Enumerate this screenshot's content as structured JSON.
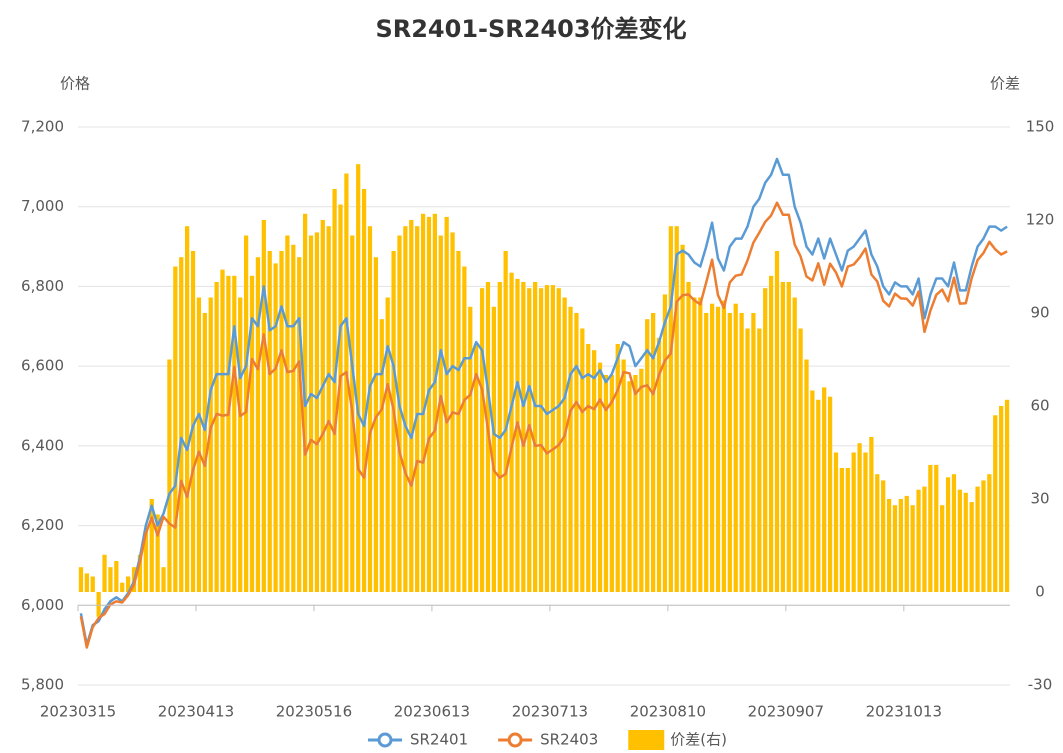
{
  "chart_data": {
    "type": "combo",
    "title": "SR2401-SR2403价差变化",
    "y_label": "价格",
    "y2_label": "价差",
    "grid": true,
    "ylim": [
      5800,
      7200
    ],
    "yticks": [
      {
        "value": 5800,
        "label": "5,800"
      },
      {
        "value": 6000,
        "label": "6,000"
      },
      {
        "value": 6200,
        "label": "6,200"
      },
      {
        "value": 6400,
        "label": "6,400"
      },
      {
        "value": 6600,
        "label": "6,600"
      },
      {
        "value": 6800,
        "label": "6,800"
      },
      {
        "value": 7000,
        "label": "7,000"
      },
      {
        "value": 7200,
        "label": "7,200"
      }
    ],
    "y2lim": [
      -30,
      150
    ],
    "y2ticks": [
      -30,
      0,
      30,
      60,
      90,
      120,
      150
    ],
    "categories": [
      "20230315",
      null,
      null,
      null,
      null,
      null,
      null,
      null,
      null,
      null,
      null,
      null,
      null,
      null,
      null,
      null,
      null,
      null,
      null,
      null,
      "20230413",
      null,
      null,
      null,
      null,
      null,
      null,
      null,
      null,
      null,
      null,
      null,
      null,
      null,
      null,
      null,
      null,
      null,
      null,
      null,
      "20230516",
      null,
      null,
      null,
      null,
      null,
      null,
      null,
      null,
      null,
      null,
      null,
      null,
      null,
      null,
      null,
      null,
      null,
      null,
      null,
      "20230613",
      null,
      null,
      null,
      null,
      null,
      null,
      null,
      null,
      null,
      null,
      null,
      null,
      null,
      null,
      null,
      null,
      null,
      null,
      null,
      "20230713",
      null,
      null,
      null,
      null,
      null,
      null,
      null,
      null,
      null,
      null,
      null,
      null,
      null,
      null,
      null,
      null,
      null,
      null,
      null,
      "20230810",
      null,
      null,
      null,
      null,
      null,
      null,
      null,
      null,
      null,
      null,
      null,
      null,
      null,
      null,
      null,
      null,
      null,
      null,
      null,
      "20230907",
      null,
      null,
      null,
      null,
      null,
      null,
      null,
      null,
      null,
      null,
      null,
      null,
      null,
      null,
      null,
      null,
      null,
      null,
      null,
      "20231013",
      null,
      null,
      null,
      null,
      null,
      null,
      null,
      null,
      null,
      null,
      null,
      null,
      null,
      null,
      null,
      null,
      null
    ],
    "series": [
      {
        "name": "SR2401",
        "type": "line",
        "color": "#5b9bd5",
        "values": [
          5980,
          5900,
          5950,
          5960,
          5990,
          6010,
          6020,
          6010,
          6030,
          6060,
          6120,
          6200,
          6250,
          6200,
          6230,
          6280,
          6300,
          6420,
          6390,
          6450,
          6480,
          6440,
          6540,
          6580,
          6580,
          6580,
          6700,
          6570,
          6600,
          6720,
          6700,
          6800,
          6690,
          6700,
          6750,
          6700,
          6700,
          6720,
          6500,
          6530,
          6520,
          6550,
          6580,
          6560,
          6700,
          6720,
          6600,
          6480,
          6450,
          6550,
          6580,
          6580,
          6650,
          6600,
          6500,
          6450,
          6420,
          6480,
          6480,
          6540,
          6560,
          6640,
          6580,
          6600,
          6590,
          6620,
          6620,
          6660,
          6640,
          6540,
          6430,
          6420,
          6440,
          6500,
          6560,
          6500,
          6550,
          6500,
          6500,
          6480,
          6490,
          6500,
          6520,
          6580,
          6600,
          6570,
          6580,
          6570,
          6590,
          6560,
          6580,
          6620,
          6660,
          6650,
          6600,
          6620,
          6640,
          6620,
          6660,
          6710,
          6750,
          6880,
          6890,
          6880,
          6860,
          6850,
          6900,
          6960,
          6870,
          6840,
          6900,
          6920,
          6920,
          6950,
          7000,
          7020,
          7060,
          7080,
          7120,
          7080,
          7080,
          7000,
          6960,
          6900,
          6880,
          6920,
          6870,
          6920,
          6880,
          6840,
          6890,
          6900,
          6920,
          6940,
          6880,
          6850,
          6800,
          6780,
          6810,
          6800,
          6800,
          6780,
          6820,
          6720,
          6780,
          6820,
          6820,
          6800,
          6860,
          6790,
          6790,
          6850,
          6900,
          6920,
          6950,
          6950,
          6940,
          6950
        ]
      },
      {
        "name": "SR2403",
        "type": "line",
        "color": "#ed7d31",
        "values": [
          5972,
          5894,
          5945,
          5968,
          5978,
          6002,
          6010,
          6007,
          6025,
          6052,
          6108,
          6180,
          6220,
          6175,
          6222,
          6205,
          6195,
          6312,
          6272,
          6340,
          6385,
          6350,
          6445,
          6480,
          6476,
          6478,
          6598,
          6475,
          6485,
          6618,
          6592,
          6680,
          6580,
          6594,
          6640,
          6585,
          6588,
          6612,
          6378,
          6415,
          6404,
          6430,
          6462,
          6430,
          6575,
          6585,
          6485,
          6342,
          6320,
          6432,
          6472,
          6492,
          6555,
          6490,
          6385,
          6332,
          6300,
          6362,
          6358,
          6419,
          6438,
          6525,
          6459,
          6484,
          6480,
          6515,
          6528,
          6580,
          6542,
          6440,
          6338,
          6320,
          6330,
          6397,
          6459,
          6400,
          6452,
          6400,
          6402,
          6381,
          6391,
          6402,
          6425,
          6488,
          6510,
          6485,
          6500,
          6492,
          6516,
          6490,
          6510,
          6540,
          6585,
          6582,
          6530,
          6548,
          6552,
          6530,
          6578,
          6614,
          6632,
          6762,
          6778,
          6780,
          6765,
          6755,
          6810,
          6867,
          6778,
          6746,
          6810,
          6827,
          6830,
          6865,
          6910,
          6935,
          6962,
          6978,
          7010,
          6980,
          6980,
          6905,
          6875,
          6825,
          6815,
          6858,
          6804,
          6857,
          6835,
          6800,
          6850,
          6855,
          6872,
          6895,
          6830,
          6812,
          6764,
          6750,
          6782,
          6770,
          6769,
          6752,
          6787,
          6686,
          6739,
          6779,
          6792,
          6763,
          6822,
          6757,
          6758,
          6821,
          6866,
          6884,
          6912,
          6893,
          6880,
          6888
        ]
      },
      {
        "name": "价差(右)",
        "type": "bar",
        "axis": "y2",
        "color": "#ffc000",
        "values": [
          8,
          6,
          5,
          -8,
          12,
          8,
          10,
          3,
          5,
          8,
          12,
          20,
          30,
          25,
          8,
          75,
          105,
          108,
          118,
          110,
          95,
          90,
          95,
          100,
          104,
          102,
          102,
          95,
          115,
          102,
          108,
          120,
          110,
          106,
          110,
          115,
          112,
          108,
          122,
          115,
          116,
          120,
          118,
          130,
          125,
          135,
          115,
          138,
          130,
          118,
          108,
          88,
          95,
          110,
          115,
          118,
          120,
          118,
          122,
          121,
          122,
          115,
          121,
          116,
          110,
          105,
          92,
          80,
          98,
          100,
          92,
          100,
          110,
          103,
          101,
          100,
          98,
          100,
          98,
          99,
          99,
          98,
          95,
          92,
          90,
          85,
          80,
          78,
          74,
          70,
          70,
          80,
          75,
          68,
          70,
          72,
          88,
          90,
          82,
          96,
          118,
          118,
          112,
          100,
          95,
          95,
          90,
          93,
          92,
          94,
          90,
          93,
          90,
          85,
          90,
          85,
          98,
          102,
          110,
          100,
          100,
          95,
          85,
          75,
          65,
          62,
          66,
          63,
          45,
          40,
          40,
          45,
          48,
          45,
          50,
          38,
          36,
          30,
          28,
          30,
          31,
          28,
          33,
          34,
          41,
          41,
          28,
          37,
          38,
          33,
          32,
          29,
          34,
          36,
          38,
          57,
          60,
          62
        ]
      }
    ]
  }
}
